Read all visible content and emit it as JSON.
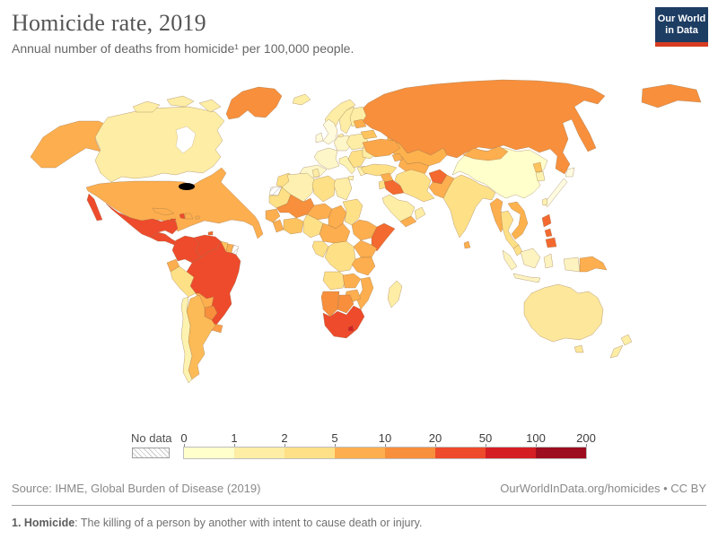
{
  "header": {
    "title": "Homicide rate, 2019",
    "subtitle": "Annual number of deaths from homicide¹ per 100,000 people."
  },
  "logo": {
    "line1": "Our World",
    "line2": "in Data",
    "bg": "#1d3d63",
    "accent": "#d73c22"
  },
  "legend": {
    "no_data_label": "No data",
    "ticks": [
      "0",
      "1",
      "2",
      "5",
      "10",
      "20",
      "50",
      "100",
      "200"
    ],
    "bucket_colors": [
      "#ffffcc",
      "#fdeda5",
      "#fee087",
      "#fdae4e",
      "#f78f3c",
      "#ee4a2c",
      "#d51e24",
      "#9d0d1f"
    ]
  },
  "footer": {
    "source": "Source: IHME, Global Burden of Disease (2019)",
    "attribution": "OurWorldInData.org/homicides • CC BY"
  },
  "footnote": {
    "label": "1. Homicide",
    "text": ": The killing of a person by another with intent to cause death or injury."
  },
  "chart_data": {
    "type": "heatmap",
    "subtype": "world-choropleth",
    "title": "Homicide rate, 2019",
    "unit": "annual deaths from homicide per 100,000 people",
    "scale_ticks": [
      0,
      1,
      2,
      5,
      10,
      20,
      50,
      100,
      200
    ],
    "scale_colors": [
      "#ffffcc",
      "#fdeda5",
      "#fee087",
      "#fdae4e",
      "#f78f3c",
      "#ee4a2c",
      "#d51e24",
      "#9d0d1f"
    ],
    "legend_no_data": "No data",
    "regions": {
      "usa": {
        "label": "United States",
        "bucket": "5-10",
        "color": "#fdae4e"
      },
      "canada": {
        "label": "Canada",
        "bucket": "1-2",
        "color": "#fdeda5"
      },
      "greenland": {
        "label": "Greenland",
        "bucket": "10-20",
        "color": "#f78f3c"
      },
      "mexico": {
        "label": "Mexico",
        "bucket": "20-50",
        "color": "#ee4a2c"
      },
      "central-america": {
        "label": "Central America",
        "bucket": "20-50",
        "color": "#ee4a2c"
      },
      "cuba": {
        "label": "Cuba",
        "bucket": "5-10",
        "color": "#fdae4e"
      },
      "haiti": {
        "label": "Haiti",
        "bucket": "20-50",
        "color": "#ee4a2c"
      },
      "dominican-republic": {
        "label": "Dominican Republic",
        "bucket": "5-10",
        "color": "#fdae4e"
      },
      "jamaica": {
        "label": "Jamaica",
        "bucket": "20-50",
        "color": "#ee4a2c"
      },
      "puerto-rico": {
        "label": "Puerto Rico",
        "bucket": "5-10",
        "color": "#fdae4e"
      },
      "trinidad-tobago": {
        "label": "Trinidad and Tobago",
        "bucket": "10-20",
        "color": "#f3692f"
      },
      "colombia": {
        "label": "Colombia",
        "bucket": "20-50",
        "color": "#ee4a2c"
      },
      "venezuela": {
        "label": "Venezuela",
        "bucket": "20-50",
        "color": "#ee4a2c"
      },
      "guyana": {
        "label": "Guyana",
        "bucket": "5-10",
        "color": "#fdc35e"
      },
      "suriname": {
        "label": "Suriname",
        "bucket": "5-10",
        "color": "#fdae4e"
      },
      "french-guiana": {
        "label": "French Guiana",
        "bucket": "no data",
        "color": "nodata"
      },
      "ecuador": {
        "label": "Ecuador",
        "bucket": "5-10",
        "color": "#fdae4e"
      },
      "peru": {
        "label": "Peru",
        "bucket": "2-5",
        "color": "#fee087"
      },
      "brazil": {
        "label": "Brazil",
        "bucket": "20-50",
        "color": "#ee4a2c"
      },
      "bolivia": {
        "label": "Bolivia",
        "bucket": "5-10",
        "color": "#fdae4e"
      },
      "paraguay": {
        "label": "Paraguay",
        "bucket": "10-20",
        "color": "#f78f3c"
      },
      "uruguay": {
        "label": "Uruguay",
        "bucket": "10-20",
        "color": "#fb9e47"
      },
      "argentina": {
        "label": "Argentina",
        "bucket": "5-10",
        "color": "#fdbb57"
      },
      "chile": {
        "label": "Chile",
        "bucket": "1-2",
        "color": "#fdf2b0"
      },
      "iceland": {
        "label": "Iceland",
        "bucket": "1-2",
        "color": "#fdeda5"
      },
      "united-kingdom": {
        "label": "United Kingdom",
        "bucket": "0-1",
        "color": "#fefadb"
      },
      "ireland": {
        "label": "Ireland",
        "bucket": "0-1",
        "color": "#fefadb"
      },
      "norway": {
        "label": "Norway",
        "bucket": "1-2",
        "color": "#fdeda5"
      },
      "sweden": {
        "label": "Sweden",
        "bucket": "1-2",
        "color": "#fdeda5"
      },
      "finland": {
        "label": "Finland",
        "bucket": "1-2",
        "color": "#fdeda5"
      },
      "denmark": {
        "label": "Denmark",
        "bucket": "1-2",
        "color": "#fdeda5"
      },
      "france": {
        "label": "France",
        "bucket": "0-1",
        "color": "#fdf6c8"
      },
      "spain": {
        "label": "Spain",
        "bucket": "0-1",
        "color": "#fdf6c8"
      },
      "germany": {
        "label": "Germany",
        "bucket": "0-1",
        "color": "#fdf6c8"
      },
      "italy": {
        "label": "Italy",
        "bucket": "0-1",
        "color": "#fdf2b0"
      },
      "central-europe": {
        "label": "Central Europe",
        "bucket": "1-2",
        "color": "#fdeda5"
      },
      "balkans": {
        "label": "Balkans",
        "bucket": "2-5",
        "color": "#fee087"
      },
      "romania": {
        "label": "Romania and Bulgaria",
        "bucket": "1-2",
        "color": "#fdeda5"
      },
      "greece": {
        "label": "Greece",
        "bucket": "1-2",
        "color": "#fdf0b0"
      },
      "baltics": {
        "label": "Baltic states",
        "bucket": "5-10",
        "color": "#fdae4e"
      },
      "belarus": {
        "label": "Belarus",
        "bucket": "5-10",
        "color": "#fdc35e"
      },
      "ukraine": {
        "label": "Ukraine",
        "bucket": "5-10",
        "color": "#fca64a"
      },
      "russia": {
        "label": "Russia",
        "bucket": "10-20",
        "color": "#f78f3c"
      },
      "kazakhstan": {
        "label": "Kazakhstan",
        "bucket": "5-10",
        "color": "#fdb24d"
      },
      "central-asia": {
        "label": "Central Asia",
        "bucket": "5-10",
        "color": "#fdae4e"
      },
      "caucasus": {
        "label": "Caucasus",
        "bucket": "5-10",
        "color": "#fdae4e"
      },
      "turkey": {
        "label": "Turkey",
        "bucket": "2-5",
        "color": "#fee087"
      },
      "syria": {
        "label": "Syria",
        "bucket": "5-10",
        "color": "#fdae4e"
      },
      "iraq": {
        "label": "Iraq",
        "bucket": "10-20",
        "color": "#f3692f"
      },
      "iran": {
        "label": "Iran",
        "bucket": "2-5",
        "color": "#fee087"
      },
      "jordan-israel": {
        "label": "Jordan and Israel",
        "bucket": "2-5",
        "color": "#fee087"
      },
      "saudi-arabia": {
        "label": "Saudi Arabia",
        "bucket": "1-2",
        "color": "#fdeda5"
      },
      "yemen": {
        "label": "Yemen",
        "bucket": "5-10",
        "color": "#fdae4e"
      },
      "oman": {
        "label": "Oman",
        "bucket": "1-2",
        "color": "#fdeda5"
      },
      "afghanistan": {
        "label": "Afghanistan",
        "bucket": "10-20",
        "color": "#f3692f"
      },
      "pakistan": {
        "label": "Pakistan",
        "bucket": "5-10",
        "color": "#fdae4e"
      },
      "india": {
        "label": "India",
        "bucket": "2-5",
        "color": "#fee087"
      },
      "sri-lanka": {
        "label": "Sri Lanka",
        "bucket": "5-10",
        "color": "#fdae4e"
      },
      "china": {
        "label": "China",
        "bucket": "0-1",
        "color": "#ffffcc"
      },
      "mongolia": {
        "label": "Mongolia",
        "bucket": "5-10",
        "color": "#fdae4e"
      },
      "north-korea": {
        "label": "North Korea",
        "bucket": "5-10",
        "color": "#fdc35e"
      },
      "south-korea": {
        "label": "South Korea",
        "bucket": "0-1",
        "color": "#fdf2b0"
      },
      "japan": {
        "label": "Japan",
        "bucket": "0-1",
        "color": "#fffbe0"
      },
      "taiwan": {
        "label": "Taiwan",
        "bucket": "0-1",
        "color": "#fdf2b0"
      },
      "myanmar": {
        "label": "Myanmar",
        "bucket": "5-10",
        "color": "#fdae4e"
      },
      "thailand": {
        "label": "Thailand",
        "bucket": "2-5",
        "color": "#fee087"
      },
      "indochina": {
        "label": "Vietnam, Laos and Cambodia",
        "bucket": "5-10",
        "color": "#fdb24d"
      },
      "malaysia": {
        "label": "Malaysia",
        "bucket": "2-5",
        "color": "#fee087"
      },
      "philippines": {
        "label": "Philippines",
        "bucket": "10-20",
        "color": "#f3692f"
      },
      "indonesia": {
        "label": "Indonesia",
        "bucket": "0-1",
        "color": "#fdf3c0"
      },
      "papua-new-guinea": {
        "label": "Papua New Guinea",
        "bucket": "5-10",
        "color": "#fdae4e"
      },
      "australia": {
        "label": "Australia",
        "bucket": "1-2",
        "color": "#fce79b"
      },
      "new-zealand": {
        "label": "New Zealand",
        "bucket": "1-2",
        "color": "#fdeda5"
      },
      "morocco": {
        "label": "Morocco",
        "bucket": "2-5",
        "color": "#fee087"
      },
      "western-sahara": {
        "label": "Western Sahara",
        "bucket": "no data",
        "color": "nodata"
      },
      "algeria": {
        "label": "Algeria",
        "bucket": "1-2",
        "color": "#fdf0b0"
      },
      "tunisia": {
        "label": "Tunisia",
        "bucket": "1-2",
        "color": "#fdeda5"
      },
      "libya": {
        "label": "Libya",
        "bucket": "2-5",
        "color": "#fee087"
      },
      "egypt": {
        "label": "Egypt",
        "bucket": "1-2",
        "color": "#fdeda5"
      },
      "mauritania": {
        "label": "Mauritania",
        "bucket": "2-5",
        "color": "#fee087"
      },
      "mali": {
        "label": "Mali",
        "bucket": "10-20",
        "color": "#f78f3c"
      },
      "niger": {
        "label": "Niger",
        "bucket": "5-10",
        "color": "#fdae4e"
      },
      "chad": {
        "label": "Chad",
        "bucket": "5-10",
        "color": "#fdae4e"
      },
      "sudan": {
        "label": "Sudan",
        "bucket": "2-5",
        "color": "#fee087"
      },
      "ethiopia": {
        "label": "Ethiopia",
        "bucket": "5-10",
        "color": "#fdae4e"
      },
      "somalia": {
        "label": "Somalia",
        "bucket": "10-20",
        "color": "#f3692f"
      },
      "senegal-guinea": {
        "label": "Senegal and Guinea",
        "bucket": "5-10",
        "color": "#fdae4e"
      },
      "sierra-leone-liberia": {
        "label": "Sierra Leone and Liberia",
        "bucket": "5-10",
        "color": "#fdae4e"
      },
      "ivory-coast-ghana": {
        "label": "Côte d'Ivoire and Ghana",
        "bucket": "5-10",
        "color": "#fdc35e"
      },
      "nigeria": {
        "label": "Nigeria",
        "bucket": "2-5",
        "color": "#fee087"
      },
      "cameroon-car": {
        "label": "Cameroon and Central African Republic",
        "bucket": "5-10",
        "color": "#fdae4e"
      },
      "congo-gabon": {
        "label": "Congo and Gabon",
        "bucket": "2-5",
        "color": "#fee087"
      },
      "drc": {
        "label": "Democratic Republic of Congo",
        "bucket": "2-5",
        "color": "#fee087"
      },
      "uganda-kenya": {
        "label": "Uganda and Kenya",
        "bucket": "5-10",
        "color": "#fdae4e"
      },
      "tanzania": {
        "label": "Tanzania",
        "bucket": "5-10",
        "color": "#fdae4e"
      },
      "angola": {
        "label": "Angola",
        "bucket": "2-5",
        "color": "#fee087"
      },
      "zambia": {
        "label": "Zambia",
        "bucket": "5-10",
        "color": "#fdae4e"
      },
      "mozambique": {
        "label": "Mozambique",
        "bucket": "5-10",
        "color": "#fdae4e"
      },
      "zimbabwe": {
        "label": "Zimbabwe",
        "bucket": "5-10",
        "color": "#fdae4e"
      },
      "namibia": {
        "label": "Namibia",
        "bucket": "10-20",
        "color": "#f78f3c"
      },
      "botswana": {
        "label": "Botswana",
        "bucket": "10-20",
        "color": "#f78f3c"
      },
      "south-africa": {
        "label": "South Africa",
        "bucket": "20-50",
        "color": "#ee4a2c"
      },
      "lesotho": {
        "label": "Lesotho",
        "bucket": "50-100",
        "color": "#d51e24"
      },
      "madagascar": {
        "label": "Madagascar",
        "bucket": "1-2",
        "color": "#fdeda5"
      }
    }
  }
}
